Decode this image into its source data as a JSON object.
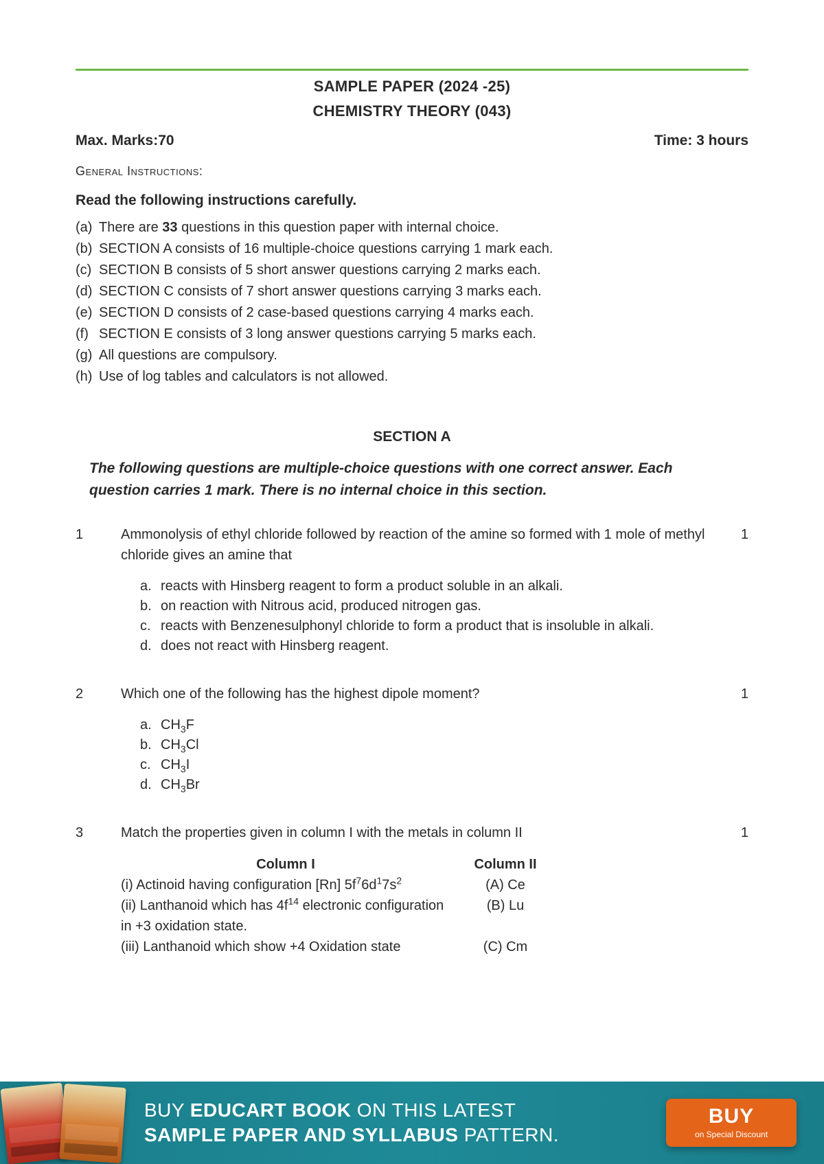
{
  "header": {
    "title": "SAMPLE PAPER (2024 -25)",
    "subject": "CHEMISTRY THEORY (043)",
    "max_marks_label": "Max. Marks:70",
    "time_label": "Time: 3 hours",
    "general_label": "General Instructions:",
    "read_heading": "Read the following instructions carefully."
  },
  "instructions": [
    {
      "label": "(a)",
      "text_before": "There are ",
      "bold": "33",
      "text_after": " questions in this question paper with internal choice."
    },
    {
      "label": "(b)",
      "text": "SECTION A consists of 16 multiple-choice questions carrying 1 mark each."
    },
    {
      "label": "(c)",
      "text": "SECTION B consists of 5 short answer questions carrying 2 marks each."
    },
    {
      "label": "(d)",
      "text": "SECTION C consists of 7 short answer questions carrying 3 marks each."
    },
    {
      "label": "(e)",
      "text": "SECTION D consists of 2 case-based questions carrying 4 marks each."
    },
    {
      "label": "(f)",
      "text": "SECTION E consists of 3 long answer questions carrying 5 marks each."
    },
    {
      "label": "(g)",
      "text": "All questions are compulsory."
    },
    {
      "label": "(h)",
      "text": "Use of log tables and calculators is not allowed."
    }
  ],
  "section_a": {
    "heading": "SECTION A",
    "intro": "The following questions are multiple-choice questions with one correct answer. Each question carries 1 mark. There is no internal choice in this section."
  },
  "q1": {
    "num": "1",
    "marks": "1",
    "stem": "Ammonolysis of ethyl chloride followed by reaction of the amine so formed with 1 mole of methyl chloride gives an amine that",
    "opts": [
      {
        "label": "a.",
        "text": "reacts with Hinsberg reagent to form a product soluble in an alkali."
      },
      {
        "label": "b.",
        "text": "on reaction with Nitrous acid, produced nitrogen gas."
      },
      {
        "label": "c.",
        "text": "reacts with Benzenesulphonyl chloride to form a product that is insoluble in alkali."
      },
      {
        "label": "d.",
        "text": "does not react with Hinsberg reagent."
      }
    ]
  },
  "q2": {
    "num": "2",
    "marks": "1",
    "stem": "Which one of the following has the highest dipole moment?",
    "opts": [
      {
        "label": "a.",
        "base": "CH",
        "sub": "3",
        "suffix": "F"
      },
      {
        "label": "b.",
        "base": "CH",
        "sub": "3",
        "suffix": "Cl"
      },
      {
        "label": "c.",
        "base": "CH",
        "sub": "3",
        "suffix": "I"
      },
      {
        "label": "d.",
        "base": "CH",
        "sub": "3",
        "suffix": "Br"
      }
    ]
  },
  "q3": {
    "num": "3",
    "marks": "1",
    "stem": "Match the properties given in column I with the metals in column II",
    "col1_head": "Column I",
    "col2_head": "Column II",
    "rows": [
      {
        "c1_label": "(i) ",
        "c1_pre": "Actinoid having configuration [Rn] 5f",
        "c1_sup1": "7",
        "c1_mid1": "6d",
        "c1_sup2": "1",
        "c1_mid2": "7s",
        "c1_sup3": "2",
        "c1_post": "",
        "c2": "(A) Ce"
      },
      {
        "c1_label": "(ii) ",
        "c1_pre": "Lanthanoid which has 4f",
        "c1_sup1": "14",
        "c1_mid1": " electronic configuration in +3 oxidation state.",
        "c1_sup2": "",
        "c1_mid2": "",
        "c1_sup3": "",
        "c1_post": "",
        "c2": "(B) Lu"
      },
      {
        "c1_label": "(iii) ",
        "c1_pre": "Lanthanoid which show +4 Oxidation state",
        "c1_sup1": "",
        "c1_mid1": "",
        "c1_sup2": "",
        "c1_mid2": "",
        "c1_sup3": "",
        "c1_post": "",
        "c2": "(C) Cm"
      }
    ]
  },
  "banner": {
    "line1_pre": "BUY ",
    "line1_bold": "EDUCART BOOK",
    "line1_post": " ON THIS LATEST",
    "line2_bold": "SAMPLE PAPER AND SYLLABUS",
    "line2_post": " PATTERN.",
    "buy_big": "BUY",
    "buy_small": "on Special Discount"
  },
  "colors": {
    "rule": "#6fb84a",
    "text": "#2a2a2a",
    "banner_bg": "#1f8a97",
    "buy_bg": "#e4641a"
  }
}
